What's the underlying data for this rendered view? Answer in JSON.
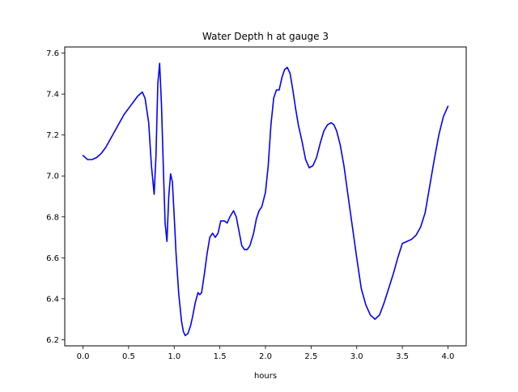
{
  "chart_data": {
    "type": "line",
    "title": "Water Depth h at gauge 3",
    "xlabel": "hours",
    "ylabel": "",
    "xlim": [
      -0.2,
      4.2
    ],
    "ylim": [
      6.17,
      7.63
    ],
    "xticks": [
      0.0,
      0.5,
      1.0,
      1.5,
      2.0,
      2.5,
      3.0,
      3.5,
      4.0
    ],
    "xtick_labels": [
      "0.0",
      "0.5",
      "1.0",
      "1.5",
      "2.0",
      "2.5",
      "3.0",
      "3.5",
      "4.0"
    ],
    "yticks": [
      6.2,
      6.4,
      6.6,
      6.8,
      7.0,
      7.2,
      7.4,
      7.6
    ],
    "ytick_labels": [
      "6.2",
      "6.4",
      "6.6",
      "6.8",
      "7.0",
      "7.2",
      "7.4",
      "7.6"
    ],
    "grid": false,
    "series": [
      {
        "color": "#0000ff",
        "x": [
          0.0,
          0.05,
          0.1,
          0.15,
          0.2,
          0.25,
          0.3,
          0.35,
          0.4,
          0.45,
          0.5,
          0.55,
          0.6,
          0.65,
          0.68,
          0.72,
          0.75,
          0.78,
          0.8,
          0.82,
          0.84,
          0.86,
          0.88,
          0.9,
          0.92,
          0.94,
          0.96,
          0.98,
          1.0,
          1.02,
          1.05,
          1.08,
          1.1,
          1.12,
          1.15,
          1.18,
          1.2,
          1.23,
          1.26,
          1.28,
          1.3,
          1.33,
          1.36,
          1.39,
          1.42,
          1.45,
          1.48,
          1.51,
          1.55,
          1.58,
          1.61,
          1.65,
          1.68,
          1.71,
          1.74,
          1.77,
          1.8,
          1.83,
          1.87,
          1.9,
          1.93,
          1.96,
          2.0,
          2.03,
          2.06,
          2.09,
          2.12,
          2.15,
          2.18,
          2.21,
          2.24,
          2.27,
          2.3,
          2.33,
          2.36,
          2.4,
          2.44,
          2.48,
          2.52,
          2.56,
          2.6,
          2.64,
          2.68,
          2.72,
          2.75,
          2.78,
          2.82,
          2.86,
          2.9,
          2.95,
          3.0,
          3.05,
          3.1,
          3.15,
          3.2,
          3.25,
          3.3,
          3.35,
          3.4,
          3.45,
          3.5,
          3.55,
          3.6,
          3.65,
          3.7,
          3.75,
          3.8,
          3.85,
          3.9,
          3.95,
          4.0
        ],
        "y": [
          7.1,
          7.08,
          7.08,
          7.09,
          7.11,
          7.14,
          7.18,
          7.22,
          7.26,
          7.3,
          7.33,
          7.36,
          7.39,
          7.41,
          7.38,
          7.26,
          7.05,
          6.91,
          7.1,
          7.45,
          7.55,
          7.35,
          7.05,
          6.77,
          6.68,
          6.9,
          7.01,
          6.97,
          6.8,
          6.62,
          6.42,
          6.29,
          6.24,
          6.22,
          6.23,
          6.27,
          6.31,
          6.38,
          6.43,
          6.42,
          6.43,
          6.52,
          6.62,
          6.7,
          6.72,
          6.7,
          6.72,
          6.78,
          6.78,
          6.77,
          6.8,
          6.83,
          6.8,
          6.73,
          6.66,
          6.64,
          6.64,
          6.66,
          6.72,
          6.79,
          6.83,
          6.85,
          6.92,
          7.05,
          7.25,
          7.38,
          7.42,
          7.42,
          7.48,
          7.52,
          7.53,
          7.5,
          7.42,
          7.33,
          7.25,
          7.17,
          7.08,
          7.04,
          7.05,
          7.09,
          7.16,
          7.22,
          7.25,
          7.26,
          7.25,
          7.22,
          7.15,
          7.05,
          6.92,
          6.76,
          6.6,
          6.45,
          6.37,
          6.32,
          6.3,
          6.32,
          6.38,
          6.45,
          6.52,
          6.6,
          6.67,
          6.68,
          6.69,
          6.71,
          6.75,
          6.82,
          6.95,
          7.08,
          7.2,
          7.29,
          7.34
        ]
      }
    ]
  }
}
